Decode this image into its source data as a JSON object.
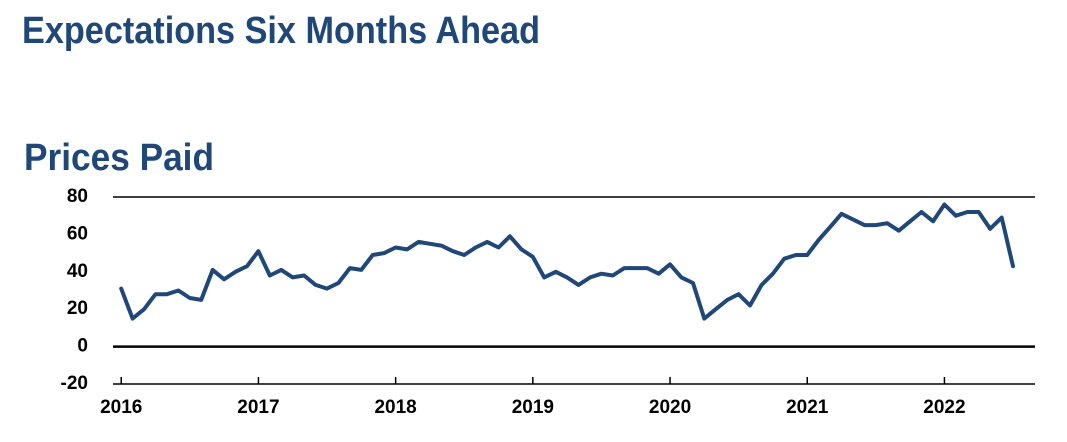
{
  "chart_data": {
    "type": "line",
    "title": "Expectations Six Months Ahead",
    "subtitle": "Prices Paid",
    "x": [
      2016,
      2016.083,
      2016.167,
      2016.25,
      2016.333,
      2016.417,
      2016.5,
      2016.583,
      2016.667,
      2016.75,
      2016.833,
      2016.917,
      2017,
      2017.083,
      2017.167,
      2017.25,
      2017.333,
      2017.417,
      2017.5,
      2017.583,
      2017.667,
      2017.75,
      2017.833,
      2017.917,
      2018,
      2018.083,
      2018.167,
      2018.25,
      2018.333,
      2018.417,
      2018.5,
      2018.583,
      2018.667,
      2018.75,
      2018.833,
      2018.917,
      2019,
      2019.083,
      2019.167,
      2019.25,
      2019.333,
      2019.417,
      2019.5,
      2019.583,
      2019.667,
      2019.75,
      2019.833,
      2019.917,
      2020,
      2020.083,
      2020.167,
      2020.25,
      2020.333,
      2020.417,
      2020.5,
      2020.583,
      2020.667,
      2020.75,
      2020.833,
      2020.917,
      2021,
      2021.083,
      2021.167,
      2021.25,
      2021.333,
      2021.417,
      2021.5,
      2021.583,
      2021.667,
      2021.75,
      2021.833,
      2021.917,
      2022,
      2022.083,
      2022.167,
      2022.25,
      2022.333,
      2022.417,
      2022.5
    ],
    "series": [
      {
        "name": "Prices Paid",
        "color": "#1f4778",
        "values": [
          31,
          15,
          20,
          28,
          28,
          30,
          26,
          25,
          41,
          36,
          40,
          43,
          51,
          38,
          41,
          37,
          38,
          33,
          31,
          34,
          42,
          41,
          49,
          50,
          53,
          52,
          56,
          55,
          54,
          51,
          49,
          53,
          56,
          53,
          59,
          52,
          48,
          37,
          40,
          37,
          33,
          37,
          39,
          38,
          42,
          42,
          42,
          39,
          44,
          37,
          34,
          15,
          20,
          25,
          28,
          22,
          33,
          39,
          47,
          49,
          49,
          57,
          64,
          71,
          68,
          65,
          65,
          66,
          62,
          67,
          72,
          67,
          76,
          70,
          72,
          72,
          63,
          69,
          43
        ]
      }
    ],
    "xlim": [
      2015.94,
      2022.66
    ],
    "xticks": [
      2016,
      2017,
      2018,
      2019,
      2020,
      2021,
      2022
    ],
    "ylim": [
      -20,
      80
    ],
    "yticks": [
      80,
      60,
      40,
      20,
      0,
      -20
    ]
  }
}
